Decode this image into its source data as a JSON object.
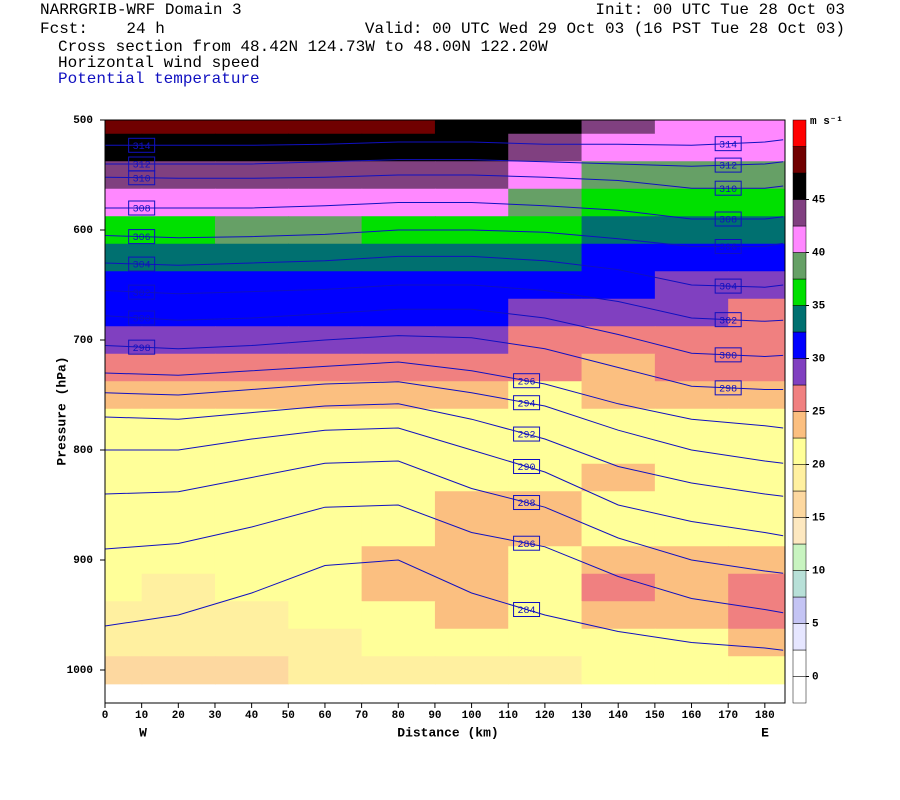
{
  "chart_data": {
    "type": "cross-section",
    "title": "NARRGRIB-WRF Domain 3",
    "init": "Init: 00 UTC Tue 28 Oct 03",
    "forecast": "Fcst:    24 h",
    "valid": "Valid: 00 UTC Wed 29 Oct 03 (16 PST Tue 28 Oct 03)",
    "subtitle": "Cross section from 48.42N 124.73W to 48.00N 122.20W",
    "field_name": "Horizontal wind speed",
    "contour_name": "Potential temperature",
    "contour_color": "#1010c0",
    "x_label": "Distance (km)",
    "y_label": "Pressure (hPa)",
    "x_endpoints": [
      "W",
      "E"
    ],
    "xlim": [
      0,
      185.5
    ],
    "xticks": [
      0,
      10,
      20,
      30,
      40,
      50,
      60,
      70,
      80,
      90,
      100,
      110,
      120,
      130,
      140,
      150,
      160,
      170,
      180
    ],
    "ylim": [
      1030,
      500
    ],
    "yticks": [
      500,
      600,
      700,
      800,
      900,
      1000
    ],
    "colorbar_unit": "m s⁻¹",
    "clim": [
      -2.5,
      52.5
    ],
    "cticks": [
      0,
      5,
      10,
      15,
      20,
      25,
      30,
      35,
      40,
      45
    ],
    "colors": [
      "#ffffff",
      "#ffffff",
      "#e6e6ff",
      "#c4c4f4",
      "#b8e0d8",
      "#c8f4c0",
      "#fde8c0",
      "#fdd8a0",
      "#fff0a0",
      "#ffff99",
      "#fbbf80",
      "#f08080",
      "#8040c0",
      "#0000ff",
      "#007070",
      "#00e000",
      "#66a066",
      "#ff88ff",
      "#804080",
      "#000000",
      "#700000",
      "#ff0000"
    ],
    "speed": {
      "x": [
        0,
        20,
        40,
        60,
        80,
        100,
        120,
        140,
        160,
        180
      ],
      "pressure": [
        500,
        525,
        550,
        575,
        600,
        625,
        650,
        675,
        700,
        725,
        750,
        775,
        800,
        825,
        850,
        875,
        900,
        925,
        950,
        975,
        1000,
        1025
      ],
      "values": [
        [
          48,
          48,
          49,
          49,
          48,
          47,
          45,
          44,
          42,
          42
        ],
        [
          46,
          46,
          47,
          47,
          46,
          45,
          44,
          42,
          41,
          41
        ],
        [
          43,
          43,
          44,
          44,
          43,
          43,
          42,
          39,
          38,
          38
        ],
        [
          40,
          40,
          41,
          41,
          40,
          40,
          39,
          37,
          36,
          36
        ],
        [
          37,
          37,
          38,
          38,
          37,
          37,
          36,
          34,
          33,
          33
        ],
        [
          34,
          34,
          35,
          35,
          35,
          34,
          33,
          31,
          31,
          31
        ],
        [
          31,
          31,
          32,
          32,
          32,
          32,
          31,
          30,
          29,
          28
        ],
        [
          31,
          31,
          31,
          31,
          31,
          31,
          29,
          28,
          28,
          27
        ],
        [
          28,
          28,
          28,
          29,
          29,
          28,
          27,
          26,
          26,
          26
        ],
        [
          26,
          26,
          26,
          26,
          26,
          26,
          25,
          24,
          25,
          26
        ],
        [
          24,
          24,
          24,
          24,
          24,
          23,
          22,
          23,
          23,
          24
        ],
        [
          22,
          22,
          21,
          21,
          21,
          21,
          21,
          21,
          21,
          21
        ],
        [
          21,
          21,
          21,
          21,
          21,
          21,
          20,
          22,
          21,
          21
        ],
        [
          21,
          21,
          21,
          20,
          21,
          22,
          21,
          23,
          21,
          21
        ],
        [
          21,
          21,
          21,
          20,
          21,
          23,
          23,
          22,
          21,
          21
        ],
        [
          21,
          21,
          21,
          20,
          22,
          23,
          23,
          22,
          22,
          22
        ],
        [
          21,
          20,
          20,
          20,
          23,
          23,
          22,
          24,
          23,
          24
        ],
        [
          20,
          19,
          20,
          20,
          23,
          23,
          22,
          26,
          24,
          26
        ],
        [
          19,
          18,
          19,
          20,
          22,
          23,
          22,
          24,
          24,
          26
        ],
        [
          18,
          18,
          19,
          19,
          21,
          22,
          21,
          22,
          22,
          24
        ],
        [
          17,
          17,
          17,
          18,
          19,
          19,
          19,
          20,
          20,
          21
        ],
        [
          null,
          null,
          null,
          null,
          null,
          null,
          null,
          null,
          null,
          null
        ]
      ]
    },
    "theta_x": [
      0,
      20,
      40,
      60,
      80,
      100,
      120,
      140,
      160,
      180,
      185
    ],
    "theta_contours": [
      {
        "value": 314,
        "pressure": [
          523,
          523,
          523,
          522,
          520,
          520,
          522,
          522,
          523,
          520,
          518
        ]
      },
      {
        "value": 312,
        "pressure": [
          540,
          540,
          540,
          538,
          536,
          536,
          538,
          540,
          542,
          540,
          538
        ]
      },
      {
        "value": 310,
        "pressure": [
          552,
          553,
          553,
          552,
          550,
          550,
          552,
          555,
          562,
          562,
          560
        ]
      },
      {
        "value": 308,
        "pressure": [
          580,
          580,
          580,
          578,
          575,
          575,
          578,
          582,
          590,
          590,
          588
        ]
      },
      {
        "value": 306,
        "pressure": [
          605,
          607,
          606,
          604,
          600,
          600,
          602,
          608,
          615,
          615,
          612
        ]
      },
      {
        "value": 304,
        "pressure": [
          630,
          632,
          630,
          628,
          624,
          624,
          628,
          636,
          650,
          652,
          650
        ]
      },
      {
        "value": 302,
        "pressure": [
          655,
          658,
          656,
          654,
          650,
          650,
          655,
          665,
          680,
          683,
          682
        ]
      },
      {
        "value": 300,
        "pressure": [
          678,
          682,
          680,
          676,
          672,
          672,
          680,
          695,
          712,
          715,
          714
        ]
      },
      {
        "value": 298,
        "pressure": [
          705,
          708,
          705,
          700,
          696,
          698,
          708,
          725,
          742,
          745,
          745
        ]
      },
      {
        "value": 296,
        "pressure": [
          730,
          732,
          728,
          724,
          720,
          728,
          740,
          758,
          772,
          778,
          780
        ]
      },
      {
        "value": 294,
        "pressure": [
          748,
          750,
          745,
          740,
          738,
          748,
          760,
          782,
          800,
          810,
          812
        ]
      },
      {
        "value": 292,
        "pressure": [
          770,
          772,
          766,
          760,
          758,
          772,
          790,
          815,
          830,
          840,
          842
        ]
      },
      {
        "value": 290,
        "pressure": [
          800,
          800,
          790,
          782,
          780,
          800,
          820,
          850,
          865,
          875,
          878
        ]
      },
      {
        "value": 288,
        "pressure": [
          840,
          838,
          825,
          812,
          810,
          835,
          852,
          880,
          900,
          910,
          912
        ]
      },
      {
        "value": 286,
        "pressure": [
          890,
          885,
          870,
          852,
          850,
          875,
          888,
          915,
          935,
          945,
          948
        ]
      },
      {
        "value": 284,
        "pressure": [
          960,
          950,
          930,
          905,
          900,
          930,
          950,
          965,
          975,
          980,
          982
        ]
      }
    ]
  }
}
